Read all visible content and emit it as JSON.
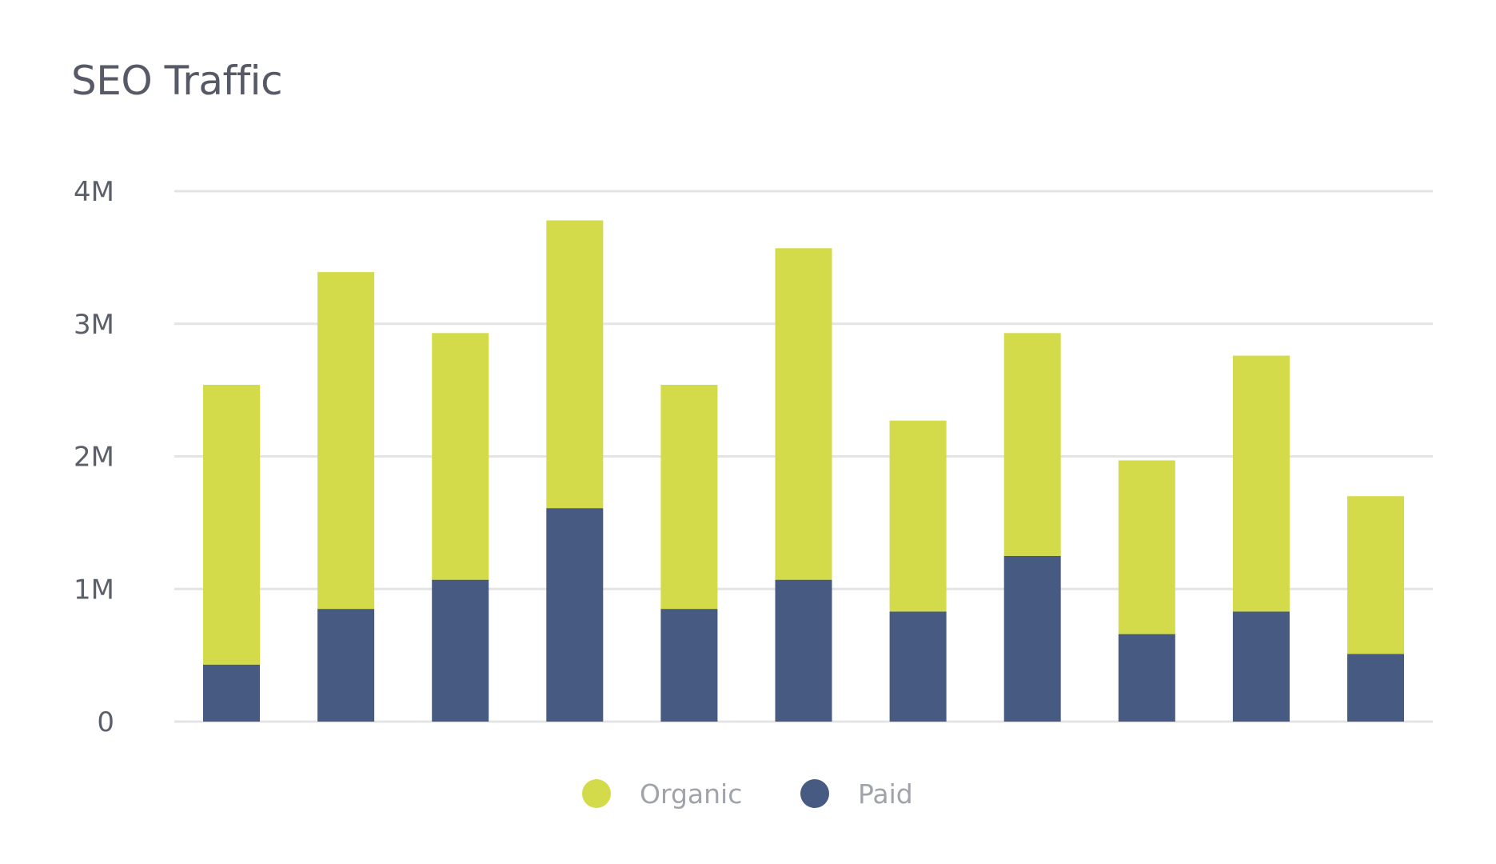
{
  "chart_data": {
    "type": "bar",
    "stacked": true,
    "title": "SEO Traffic",
    "xlabel": "",
    "ylabel": "",
    "ylim": [
      0,
      4000000
    ],
    "yticks": [
      0,
      1000000,
      2000000,
      3000000,
      4000000
    ],
    "ytick_labels": [
      "0",
      "1M",
      "2M",
      "3M",
      "4M"
    ],
    "grid": true,
    "legend_position": "bottom",
    "series": [
      {
        "name": "Paid",
        "color": "#465a82",
        "values": [
          430000,
          850000,
          1070000,
          1610000,
          850000,
          1070000,
          830000,
          1250000,
          660000,
          830000,
          510000
        ]
      },
      {
        "name": "Organic",
        "color": "#d3db4a",
        "values": [
          2110000,
          2540000,
          1860000,
          2170000,
          1690000,
          2500000,
          1440000,
          1680000,
          1310000,
          1930000,
          1190000
        ]
      }
    ],
    "legend": [
      "Organic",
      "Paid"
    ]
  }
}
